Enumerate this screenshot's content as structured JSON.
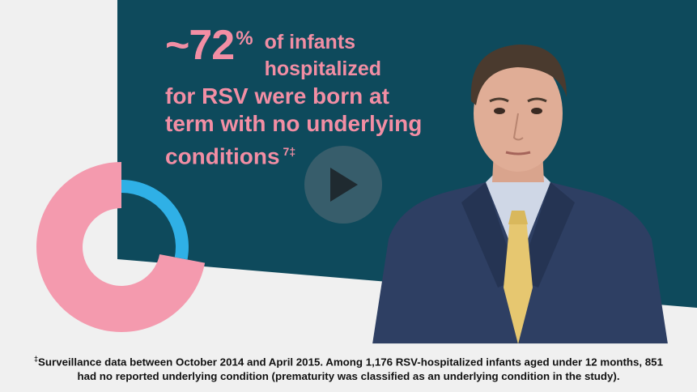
{
  "headline": {
    "stat_number": "~72",
    "stat_percent": "%",
    "line1": "of infants",
    "line2": "hospitalized",
    "line3": "for RSV were born at",
    "line4": "term with no underlying",
    "line5": "conditions",
    "footnote_ref": "7‡"
  },
  "donut": {
    "note": "",
    "segments": [
      {
        "label": "",
        "fraction": 0.72,
        "color": "#f49aae"
      },
      {
        "label": "",
        "fraction": 0.28,
        "color": "#2fb0e6"
      }
    ]
  },
  "player": {
    "play_icon": "play-icon"
  },
  "caption": {
    "mark": "‡",
    "text": "Surveillance data between October 2014 and April 2015. Among 1,176 RSV-hospitalized infants aged under 12 months, 851 had no reported underlying condition (prematurity was classified as an underlying condition in the study)."
  },
  "colors": {
    "teal_background": "#0e4a5c",
    "headline_pink": "#f28ea4",
    "donut_pink": "#f49aae",
    "donut_blue": "#2fb0e6",
    "light_panel": "#f0f0f0"
  }
}
